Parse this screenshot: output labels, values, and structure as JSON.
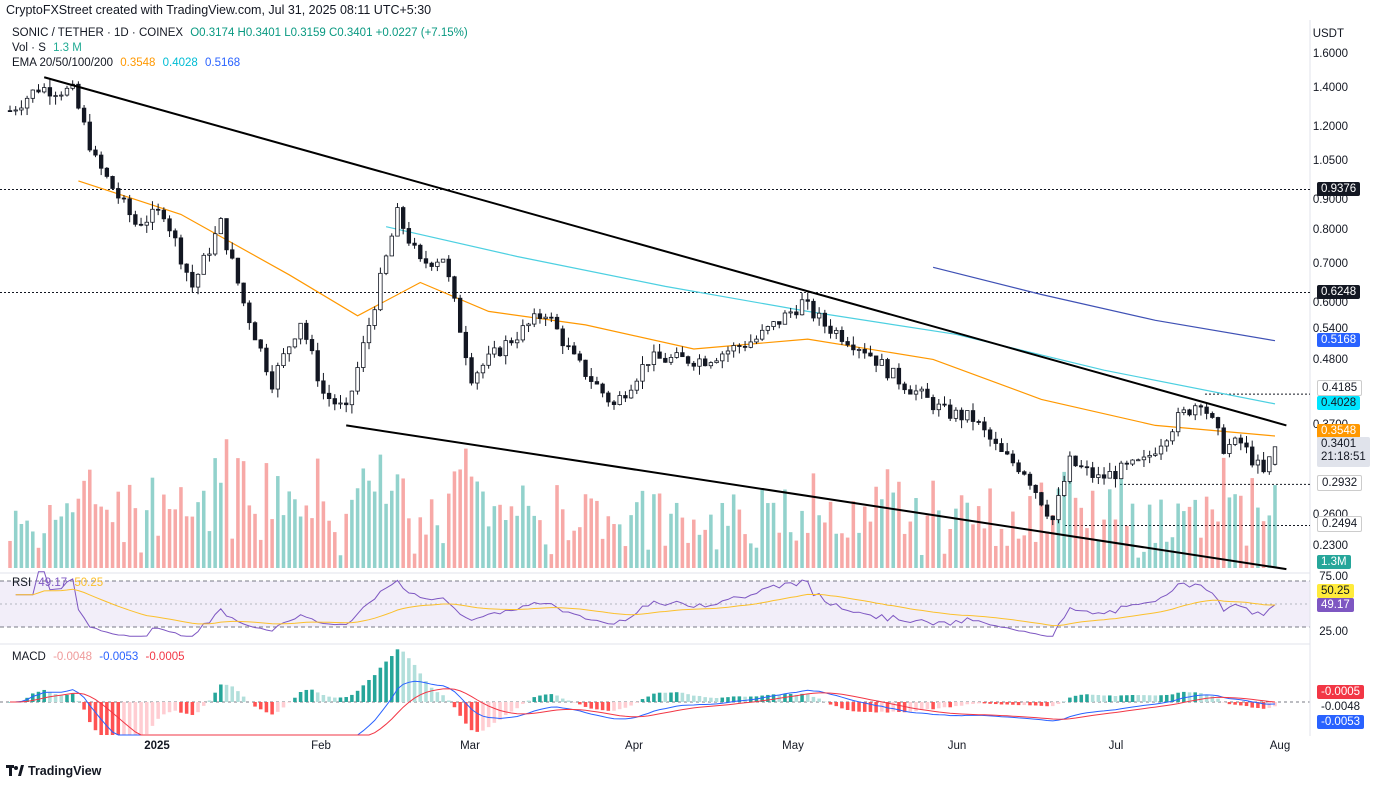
{
  "caption": "CryptoFXStreet created with TradingView.com, Jul 31, 2025 08:11 UTC+5:30",
  "legend": {
    "symbol": "SONIC / TETHER · 1D · COINEX",
    "ohlc": "O0.3174  H0.3401  L0.3159  C0.3401  +0.0227 (+7.15%)",
    "vol_label": "Vol · S",
    "vol_value": "1.3 M",
    "ema_label": "EMA 20/50/100/200",
    "ema_values": [
      "0.3548",
      "0.4028",
      "0.5168"
    ],
    "ema_colors": [
      "#ff9800",
      "#00bcd4",
      "#2962ff"
    ]
  },
  "currency": "USDT",
  "price_axis_ticks": [
    "1.6000",
    "1.4000",
    "1.2000",
    "1.0500",
    "0.9000",
    "0.8000",
    "0.7000",
    "0.6000",
    "0.5400",
    "0.4800",
    "0.3700",
    "0.2600",
    "0.2300"
  ],
  "tags": {
    "level_top": "0.9376",
    "level_mid": "0.6248",
    "ema200": "0.5168",
    "level_res": "0.4185",
    "ema100": "0.4028",
    "ema50": "0.3548",
    "last_price": "0.3401",
    "countdown": "21:18:51",
    "level_sup": "0.2932",
    "level_low": "0.2494",
    "volume": "1.3M"
  },
  "rsi": {
    "label": "RSI",
    "value": "49.17",
    "ma_value": "50.25",
    "ticks": [
      "75.00",
      "25.00"
    ],
    "tag_value": "49.17",
    "tag_ma": "50.25"
  },
  "macd": {
    "label": "MACD",
    "hist": "-0.0048",
    "macd": "-0.0053",
    "signal": "-0.0005",
    "tag_signal": "-0.0005",
    "tag_hist": "-0.0048",
    "tag_macd": "-0.0053"
  },
  "x_axis": [
    "2025",
    "Feb",
    "Mar",
    "Apr",
    "May",
    "Jun",
    "Jul",
    "Aug"
  ],
  "brand": "TradingView",
  "chart_data": {
    "type": "candlestick",
    "title": "SONIC / TETHER · 1D · COINEX",
    "ylabel": "USDT",
    "y_scale": "log",
    "ylim": [
      0.21,
      1.65
    ],
    "x_range": [
      "2024-12-21",
      "2025-07-31"
    ],
    "key_levels": [
      0.9376,
      0.6248,
      0.4185,
      0.2932,
      0.2494
    ],
    "last": {
      "open": 0.3174,
      "high": 0.3401,
      "low": 0.3159,
      "close": 0.3401
    },
    "close_anchors": [
      {
        "date": "2024-12-21",
        "close": 1.28
      },
      {
        "date": "2024-12-26",
        "close": 1.4
      },
      {
        "date": "2025-01-01",
        "close": 1.38
      },
      {
        "date": "2025-01-05",
        "close": 1.05
      },
      {
        "date": "2025-01-12",
        "close": 0.82
      },
      {
        "date": "2025-01-17",
        "close": 0.86
      },
      {
        "date": "2025-01-22",
        "close": 0.64
      },
      {
        "date": "2025-01-27",
        "close": 0.82
      },
      {
        "date": "2025-01-31",
        "close": 0.6
      },
      {
        "date": "2025-02-05",
        "close": 0.44
      },
      {
        "date": "2025-02-10",
        "close": 0.56
      },
      {
        "date": "2025-02-14",
        "close": 0.42
      },
      {
        "date": "2025-02-18",
        "close": 0.39
      },
      {
        "date": "2025-02-23",
        "close": 0.6
      },
      {
        "date": "2025-02-27",
        "close": 0.85
      },
      {
        "date": "2025-03-03",
        "close": 0.7
      },
      {
        "date": "2025-03-07",
        "close": 0.72
      },
      {
        "date": "2025-03-12",
        "close": 0.45
      },
      {
        "date": "2025-03-18",
        "close": 0.51
      },
      {
        "date": "2025-03-25",
        "close": 0.58
      },
      {
        "date": "2025-03-30",
        "close": 0.48
      },
      {
        "date": "2025-04-06",
        "close": 0.4
      },
      {
        "date": "2025-04-12",
        "close": 0.48
      },
      {
        "date": "2025-04-22",
        "close": 0.48
      },
      {
        "date": "2025-05-01",
        "close": 0.52
      },
      {
        "date": "2025-05-09",
        "close": 0.6
      },
      {
        "date": "2025-05-13",
        "close": 0.55
      },
      {
        "date": "2025-05-20",
        "close": 0.5
      },
      {
        "date": "2025-05-25",
        "close": 0.45
      },
      {
        "date": "2025-06-03",
        "close": 0.39
      },
      {
        "date": "2025-06-08",
        "close": 0.38
      },
      {
        "date": "2025-06-13",
        "close": 0.33
      },
      {
        "date": "2025-06-17",
        "close": 0.31
      },
      {
        "date": "2025-06-22",
        "close": 0.255
      },
      {
        "date": "2025-06-25",
        "close": 0.32
      },
      {
        "date": "2025-06-30",
        "close": 0.3
      },
      {
        "date": "2025-07-08",
        "close": 0.32
      },
      {
        "date": "2025-07-14",
        "close": 0.38
      },
      {
        "date": "2025-07-18",
        "close": 0.41
      },
      {
        "date": "2025-07-22",
        "close": 0.34
      },
      {
        "date": "2025-07-25",
        "close": 0.345
      },
      {
        "date": "2025-07-29",
        "close": 0.305
      },
      {
        "date": "2025-07-31",
        "close": 0.3401
      }
    ],
    "ema_50": [
      {
        "date": "2025-01-02",
        "value": 0.97
      },
      {
        "date": "2025-01-20",
        "value": 0.85
      },
      {
        "date": "2025-02-08",
        "value": 0.67
      },
      {
        "date": "2025-02-20",
        "value": 0.57
      },
      {
        "date": "2025-03-03",
        "value": 0.65
      },
      {
        "date": "2025-03-15",
        "value": 0.58
      },
      {
        "date": "2025-04-01",
        "value": 0.55
      },
      {
        "date": "2025-04-20",
        "value": 0.5
      },
      {
        "date": "2025-05-10",
        "value": 0.52
      },
      {
        "date": "2025-06-01",
        "value": 0.48
      },
      {
        "date": "2025-06-20",
        "value": 0.41
      },
      {
        "date": "2025-07-10",
        "value": 0.37
      },
      {
        "date": "2025-07-31",
        "value": 0.3548
      }
    ],
    "ema_100": [
      {
        "date": "2025-02-25",
        "value": 0.81
      },
      {
        "date": "2025-03-20",
        "value": 0.72
      },
      {
        "date": "2025-04-15",
        "value": 0.64
      },
      {
        "date": "2025-05-10",
        "value": 0.58
      },
      {
        "date": "2025-06-05",
        "value": 0.53
      },
      {
        "date": "2025-07-01",
        "value": 0.46
      },
      {
        "date": "2025-07-31",
        "value": 0.4028
      }
    ],
    "ema_200": [
      {
        "date": "2025-06-01",
        "value": 0.69
      },
      {
        "date": "2025-06-20",
        "value": 0.62
      },
      {
        "date": "2025-07-10",
        "value": 0.56
      },
      {
        "date": "2025-07-31",
        "value": 0.5168
      }
    ],
    "trendlines": [
      {
        "name": "descending resistance",
        "from": {
          "date": "2024-12-27",
          "price": 1.46
        },
        "to": {
          "date": "2025-08-02",
          "price": 0.37
        }
      },
      {
        "name": "descending support",
        "from": {
          "date": "2025-02-18",
          "price": 0.37
        },
        "to": {
          "date": "2025-08-02",
          "price": 0.21
        }
      }
    ],
    "rsi_range": [
      25,
      75
    ],
    "macd_last": {
      "macd": -0.0053,
      "signal": -0.0005,
      "histogram": -0.0048
    }
  }
}
